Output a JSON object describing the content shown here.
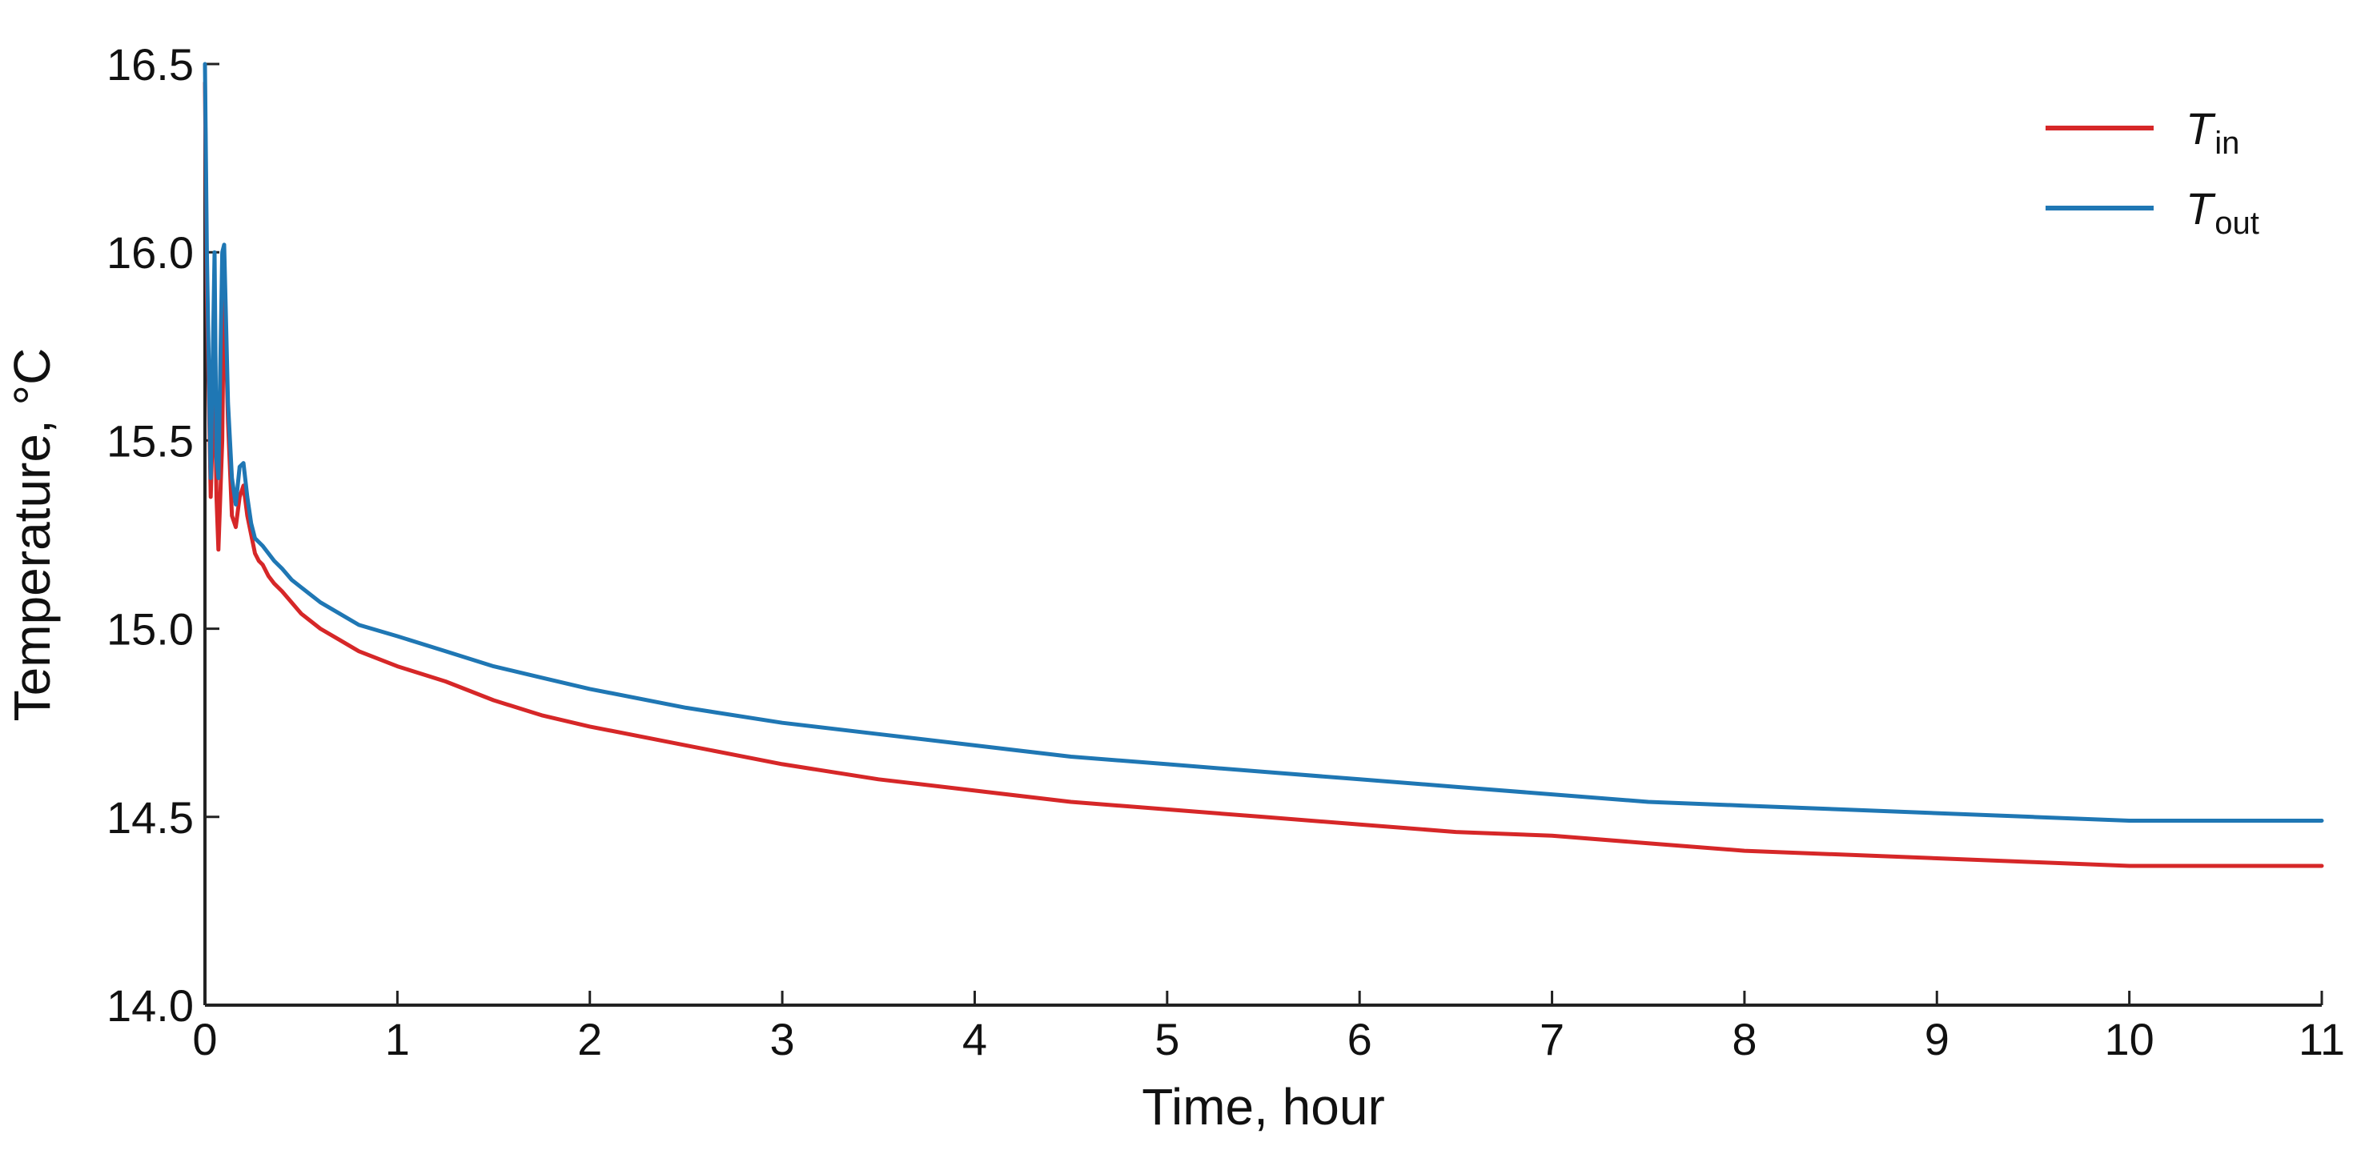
{
  "chart_data": {
    "type": "line",
    "title": "",
    "xlabel": "Time, hour",
    "ylabel": "Temperature, °C",
    "xlim": [
      0,
      11
    ],
    "ylim": [
      14.0,
      16.5
    ],
    "xticks": [
      "0",
      "1",
      "2",
      "3",
      "4",
      "5",
      "6",
      "7",
      "8",
      "9",
      "10",
      "11"
    ],
    "yticks": [
      "14.0",
      "14.5",
      "15.0",
      "15.5",
      "16.0",
      "16.5"
    ],
    "grid": false,
    "legend_position": "top-right",
    "series": [
      {
        "name_main": "T",
        "name_sub": "in",
        "color": "#d62728",
        "x": [
          0,
          0.01,
          0.03,
          0.05,
          0.06,
          0.07,
          0.09,
          0.1,
          0.12,
          0.14,
          0.16,
          0.18,
          0.2,
          0.22,
          0.24,
          0.26,
          0.28,
          0.3,
          0.33,
          0.36,
          0.4,
          0.45,
          0.5,
          0.6,
          0.7,
          0.8,
          1.0,
          1.25,
          1.5,
          1.75,
          2.0,
          2.5,
          3.0,
          3.5,
          4.0,
          4.5,
          5.0,
          5.5,
          6.0,
          6.5,
          7.0,
          7.5,
          8.0,
          8.5,
          9.0,
          9.5,
          10.0,
          10.5,
          11.0
        ],
        "y": [
          16.45,
          15.9,
          15.35,
          15.7,
          15.35,
          15.21,
          15.5,
          15.95,
          15.55,
          15.3,
          15.27,
          15.35,
          15.38,
          15.3,
          15.25,
          15.2,
          15.18,
          15.17,
          15.14,
          15.12,
          15.1,
          15.07,
          15.04,
          15.0,
          14.97,
          14.94,
          14.9,
          14.86,
          14.81,
          14.77,
          14.74,
          14.69,
          14.64,
          14.6,
          14.57,
          14.54,
          14.52,
          14.5,
          14.48,
          14.46,
          14.45,
          14.43,
          14.41,
          14.4,
          14.39,
          14.38,
          14.37,
          14.37,
          14.37
        ]
      },
      {
        "name_main": "T",
        "name_sub": "out",
        "color": "#1f77b4",
        "x": [
          0,
          0.01,
          0.03,
          0.05,
          0.06,
          0.07,
          0.09,
          0.1,
          0.12,
          0.14,
          0.16,
          0.18,
          0.2,
          0.22,
          0.24,
          0.26,
          0.28,
          0.3,
          0.33,
          0.36,
          0.4,
          0.45,
          0.5,
          0.6,
          0.7,
          0.8,
          1.0,
          1.25,
          1.5,
          1.75,
          2.0,
          2.5,
          3.0,
          3.5,
          4.0,
          4.5,
          5.0,
          5.5,
          6.0,
          6.5,
          7.0,
          7.5,
          8.0,
          8.5,
          9.0,
          9.5,
          10.0,
          10.5,
          11.0
        ],
        "y": [
          16.5,
          16.0,
          15.4,
          16.0,
          15.45,
          15.4,
          16.0,
          16.02,
          15.6,
          15.4,
          15.33,
          15.43,
          15.44,
          15.35,
          15.28,
          15.24,
          15.23,
          15.22,
          15.2,
          15.18,
          15.16,
          15.13,
          15.11,
          15.07,
          15.04,
          15.01,
          14.98,
          14.94,
          14.9,
          14.87,
          14.84,
          14.79,
          14.75,
          14.72,
          14.69,
          14.66,
          14.64,
          14.62,
          14.6,
          14.58,
          14.56,
          14.54,
          14.53,
          14.52,
          14.51,
          14.5,
          14.49,
          14.49,
          14.49
        ]
      }
    ]
  }
}
